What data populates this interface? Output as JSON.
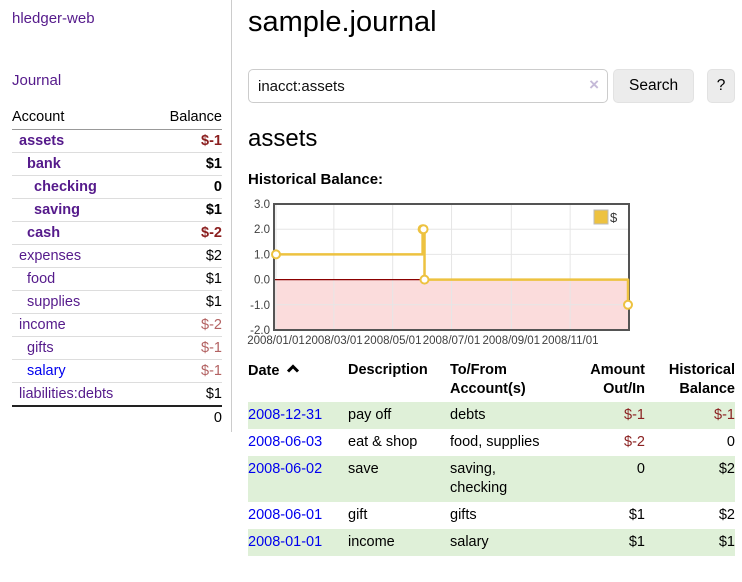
{
  "app_title": "hledger-web",
  "sidebar": {
    "journal_link": "Journal",
    "accounts": {
      "header_account": "Account",
      "header_balance": "Balance",
      "rows": [
        {
          "name": "assets",
          "balance": "$-1"
        },
        {
          "name": "bank",
          "balance": "$1"
        },
        {
          "name": "checking",
          "balance": "0"
        },
        {
          "name": "saving",
          "balance": "$1"
        },
        {
          "name": "cash",
          "balance": "$-2"
        },
        {
          "name": "expenses",
          "balance": "$2"
        },
        {
          "name": "food",
          "balance": "$1"
        },
        {
          "name": "supplies",
          "balance": "$1"
        },
        {
          "name": "income",
          "balance": "$-2"
        },
        {
          "name": "gifts",
          "balance": "$-1"
        },
        {
          "name": "salary",
          "balance": "$-1"
        },
        {
          "name": "liabilities:debts",
          "balance": "$1"
        }
      ],
      "total": "0"
    }
  },
  "main": {
    "title": "sample.journal",
    "search": {
      "value": "inacct:assets",
      "clear_icon": "×",
      "search_button": "Search",
      "help_button": "?"
    },
    "account_heading": "assets",
    "chart_title": "Historical Balance:",
    "register": {
      "headers": {
        "date": "Date",
        "description": "Description",
        "accounts": "To/From Account(s)",
        "amount": "Amount Out/In",
        "balance": "Historical Balance"
      },
      "sort": "ascending",
      "rows": [
        {
          "date": "2008-12-31",
          "description": "pay off",
          "accounts": "debts",
          "amount": "$-1",
          "balance": "$-1"
        },
        {
          "date": "2008-06-03",
          "description": "eat & shop",
          "accounts": "food, supplies",
          "amount": "$-2",
          "balance": "0"
        },
        {
          "date": "2008-06-02",
          "description": "save",
          "accounts": "saving, checking",
          "amount": "0",
          "balance": "$2"
        },
        {
          "date": "2008-06-01",
          "description": "gift",
          "accounts": "gifts",
          "amount": "$1",
          "balance": "$2"
        },
        {
          "date": "2008-01-01",
          "description": "income",
          "accounts": "salary",
          "amount": "$1",
          "balance": "$1"
        }
      ]
    }
  },
  "chart_data": {
    "type": "line",
    "step": true,
    "title": "Historical Balance",
    "series": [
      {
        "name": "$",
        "color": "#edc240",
        "points": [
          [
            "2008-01-01",
            1
          ],
          [
            "2008-06-01",
            2
          ],
          [
            "2008-06-02",
            2
          ],
          [
            "2008-06-03",
            0
          ],
          [
            "2008-12-31",
            -1
          ]
        ]
      }
    ],
    "x_ticks": [
      "2008/01/01",
      "2008/03/01",
      "2008/05/01",
      "2008/07/01",
      "2008/09/01",
      "2008/11/01"
    ],
    "y_ticks": [
      "3.0",
      "2.0",
      "1.0",
      "0.0",
      "-1.0",
      "-2.0"
    ],
    "ylim": [
      -2,
      3
    ],
    "grid": true,
    "negative_region_color": "#fbdcdc",
    "zero_line_color": "#8b0000",
    "legend": {
      "label": "$",
      "position": "top-right"
    }
  },
  "colors": {
    "link_purple": "#551a8b",
    "link_blue": "#0000ee",
    "negative_dark": "#8b1f1f",
    "negative_light": "#b36262",
    "row_green": "#dff0d8",
    "series_yellow": "#edc240"
  }
}
